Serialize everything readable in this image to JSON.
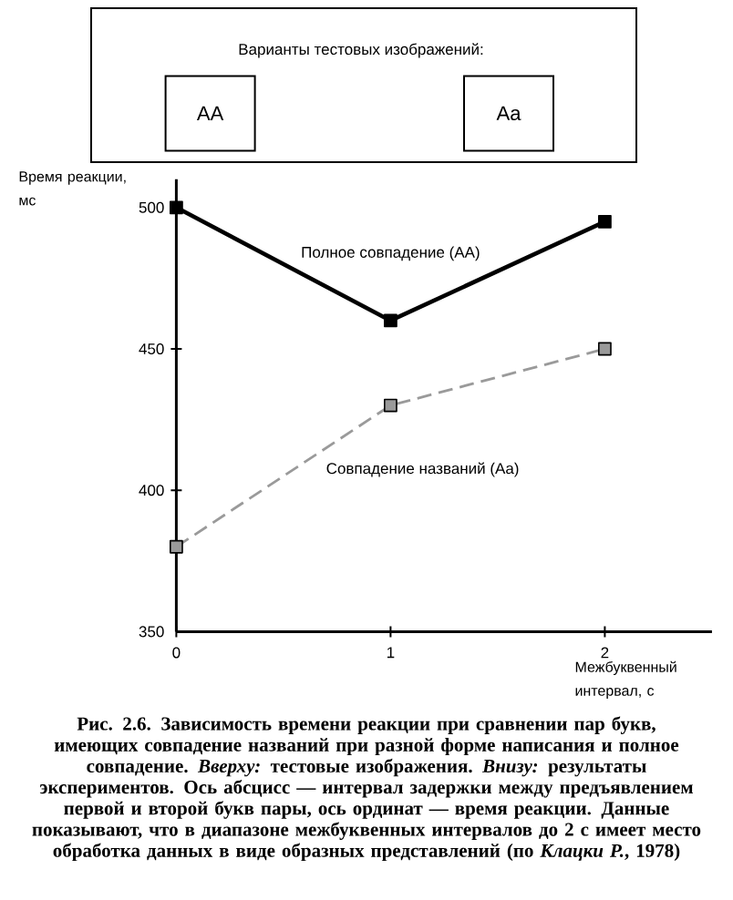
{
  "chart_data": {
    "type": "line",
    "xlabel": "Межбуквенный интервал, с",
    "ylabel": "Время реакции, мс",
    "x": [
      0,
      1,
      2
    ],
    "series": [
      {
        "name": "Полное совпадение (AA)",
        "color": "#000000",
        "values": [
          500,
          460,
          495
        ],
        "line_style": "solid"
      },
      {
        "name": "Совпадение названий (Aa)",
        "color": "#9a9a9a",
        "values": [
          380,
          430,
          450
        ],
        "line_style": "dashed"
      }
    ],
    "xlim": [
      0,
      2.5
    ],
    "xticks": [
      0,
      1,
      2
    ],
    "ylim": [
      350,
      510
    ],
    "yticks": [
      350,
      400,
      450,
      500
    ],
    "marker": "square",
    "annotations": [
      "Варианты тестовых изображений:",
      "AA",
      "Aa",
      "Рис. 2.6. Зависимость времени реакции при сравнении пар букв, имеющих совпадение названий при разной форме написания и полное совпадение. *Вверху:* тестовые изображения. *Внизу:* результаты экспериментов. Ось абсцисс — интервал задержки между предъявлением первой и второй букв пары, ось ординат — время реакции. Данные показывают, что в диапазоне межбуквенных интервалов до 2 с имеет место обработка данных в виде образных представлений (по *Клацки Р.*, 1978)"
    ]
  }
}
